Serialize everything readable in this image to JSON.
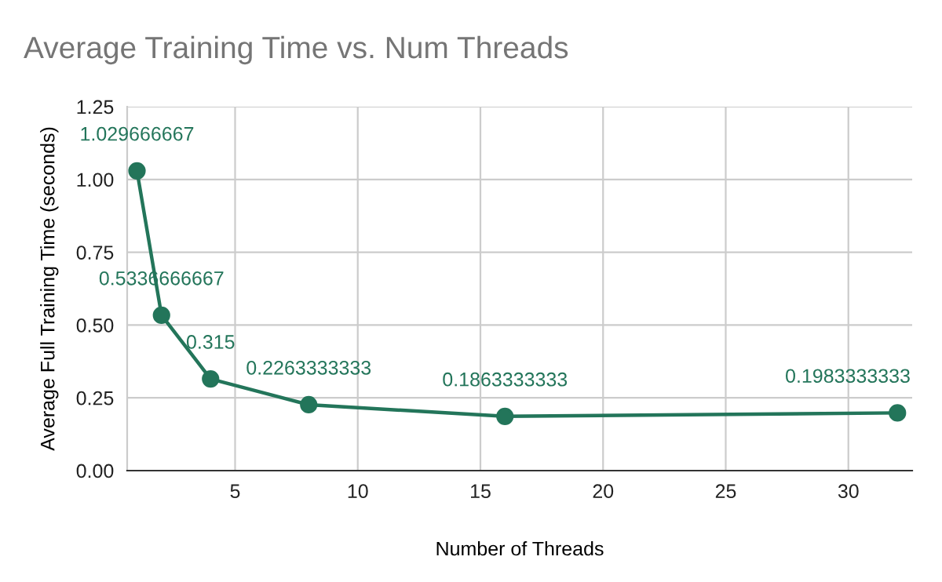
{
  "chart_data": {
    "type": "line",
    "title": "Average Training Time vs. Num Threads",
    "xlabel": "Number of Threads",
    "ylabel": "Average Full Training Time (seconds)",
    "x": [
      1,
      2,
      4,
      8,
      16,
      32
    ],
    "series": [
      {
        "color": "#23755a",
        "values": [
          1.029666667,
          0.5336666667,
          0.315,
          0.2263333333,
          0.1863333333,
          0.1983333333
        ]
      }
    ],
    "xlim": [
      0.6,
      32.6
    ],
    "xticks": [
      5,
      10,
      15,
      20,
      25,
      30
    ],
    "ylim": [
      0,
      1.25
    ],
    "yticks": [
      {
        "value": 0,
        "label": "0.00"
      },
      {
        "value": 0.25,
        "label": "0.25"
      },
      {
        "value": 0.5,
        "label": "0.50"
      },
      {
        "value": 0.75,
        "label": "0.75"
      },
      {
        "value": 1.0,
        "label": "1.00"
      },
      {
        "value": 1.25,
        "label": "1.25"
      }
    ],
    "grid": true,
    "marker": "circle",
    "line_style": "solid",
    "data_labels": true
  }
}
